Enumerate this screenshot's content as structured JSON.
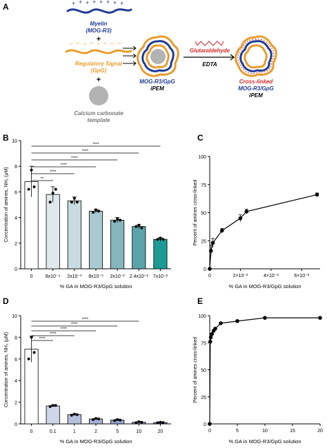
{
  "colors": {
    "myelin": "#1f3a93",
    "regulatory": "#e89c2a",
    "crosslink": "#d62728",
    "template": "#b3b3b3",
    "bar_shades": [
      "#ffffff",
      "#dfe9ec",
      "#c7dbe0",
      "#a8c9cf",
      "#86b6bd",
      "#5aa4a9",
      "#1c9a93"
    ],
    "bar_shades_d": [
      "#ffffff",
      "#cdd5e8",
      "#b5c0dd",
      "#a6b3d6",
      "#98a5ce",
      "#8a98c6",
      "#7d8cbd"
    ]
  },
  "panel_a": {
    "letter": "A",
    "myelin_label": [
      "Myelin",
      "(MOG-R3)"
    ],
    "regulatory_label": [
      "Regulatory Signal",
      "(GpG)"
    ],
    "template_label": [
      "Calcium carbonate",
      "template"
    ],
    "plus": "+",
    "ipem_label": [
      "MOG-R3/GpG",
      "iPEM"
    ],
    "crosslinked_label": [
      "Cross-linked",
      "MOG-R3/GpG",
      "iPEM"
    ],
    "reagent_top": "Glutaraldehyde",
    "reagent_bottom": "EDTA"
  },
  "chart_data": [
    {
      "id": "B",
      "type": "bar",
      "ylabel": "Concentration of amines, NH₂ (μM)",
      "xlabel": "% GA in MOG-R3/GpG solution",
      "categories": [
        "0",
        "8x10⁻⁴",
        "2x10⁻³",
        "8x10⁻³",
        "2x10⁻²",
        "2.4x10⁻²",
        "7x10⁻²"
      ],
      "values": [
        6.8,
        5.8,
        5.3,
        4.5,
        3.8,
        3.3,
        2.3
      ],
      "errors": [
        1.2,
        0.6,
        0.3,
        0.15,
        0.2,
        0.15,
        0.15
      ],
      "points": [
        [
          6.2,
          7.7,
          6.4
        ],
        [
          5.2,
          5.9,
          6.2
        ],
        [
          5.2,
          5.5,
          5.2
        ],
        [
          4.4,
          4.6,
          4.5
        ],
        [
          3.7,
          3.9,
          3.8
        ],
        [
          3.3,
          3.4,
          3.2
        ],
        [
          2.3,
          2.4,
          2.3
        ]
      ],
      "yticks": [
        0,
        2,
        4,
        6,
        8,
        10
      ],
      "ylim": [
        0,
        10
      ],
      "significance": [
        {
          "from": 0,
          "to": 1,
          "label": "**"
        },
        {
          "from": 0,
          "to": 2,
          "label": "****"
        },
        {
          "from": 0,
          "to": 3,
          "label": "****"
        },
        {
          "from": 0,
          "to": 4,
          "label": "****"
        },
        {
          "from": 0,
          "to": 5,
          "label": "****"
        },
        {
          "from": 0,
          "to": 6,
          "label": "****"
        }
      ]
    },
    {
      "id": "C",
      "type": "line",
      "ylabel": "Percent of amines cross-linked",
      "xlabel": "% GA in MOG-R3/GpG solution",
      "x": [
        0,
        0.0008,
        0.002,
        0.008,
        0.02,
        0.024,
        0.07
      ],
      "y": [
        0,
        16,
        23,
        34,
        45,
        51,
        66
      ],
      "errors": [
        0,
        5,
        4,
        2,
        3,
        2,
        1.5
      ],
      "xlim": [
        0,
        0.072
      ],
      "ylim": [
        0,
        100
      ],
      "xticks": [
        0,
        0.02,
        0.04,
        0.06
      ],
      "xtick_labels": [
        "0",
        "2×10⁻²",
        "4×10⁻²",
        "6×10⁻²"
      ],
      "yticks": [
        0,
        25,
        50,
        75,
        100
      ]
    },
    {
      "id": "D",
      "type": "bar",
      "ylabel": "Concentration of amines, NH₂ (μM)",
      "xlabel": "% GA in MOG-R3/GpG solution",
      "categories": [
        "0",
        "0.1",
        "1",
        "2",
        "5",
        "10",
        "20"
      ],
      "values": [
        6.9,
        1.65,
        0.85,
        0.45,
        0.35,
        0.15,
        0.12
      ],
      "errors": [
        1.2,
        0.08,
        0.05,
        0.05,
        0.08,
        0.04,
        0.04
      ],
      "points": [
        [
          6.0,
          8.0,
          6.6
        ],
        [
          1.6,
          1.7,
          1.7
        ],
        [
          0.8,
          0.9,
          0.85
        ],
        [
          0.4,
          0.5,
          0.45
        ],
        [
          0.3,
          0.4,
          0.35
        ],
        [
          0.1,
          0.2,
          0.15
        ],
        [
          0.1,
          0.15,
          0.12
        ]
      ],
      "yticks": [
        0,
        2,
        4,
        6,
        8,
        10
      ],
      "ylim": [
        0,
        10
      ],
      "significance": [
        {
          "from": 0,
          "to": 1,
          "label": "****"
        },
        {
          "from": 0,
          "to": 2,
          "label": "****"
        },
        {
          "from": 0,
          "to": 3,
          "label": "****"
        },
        {
          "from": 0,
          "to": 4,
          "label": "****"
        },
        {
          "from": 0,
          "to": 5,
          "label": "****"
        }
      ]
    },
    {
      "id": "E",
      "type": "line",
      "ylabel": "Percent of amines cross-linked",
      "xlabel": "% GA in MOG-R3/GpG solution",
      "x": [
        0,
        0.1,
        0.2,
        0.4,
        0.7,
        1,
        2,
        5,
        10,
        20
      ],
      "y": [
        0,
        76,
        80,
        83,
        86,
        88,
        93,
        95,
        98,
        98
      ],
      "xlim": [
        0,
        20
      ],
      "ylim": [
        0,
        100
      ],
      "xticks": [
        0,
        5,
        10,
        15,
        20
      ],
      "xtick_labels": [
        "0",
        "5",
        "10",
        "15",
        "20"
      ],
      "yticks": [
        0,
        25,
        50,
        75,
        100
      ]
    }
  ]
}
